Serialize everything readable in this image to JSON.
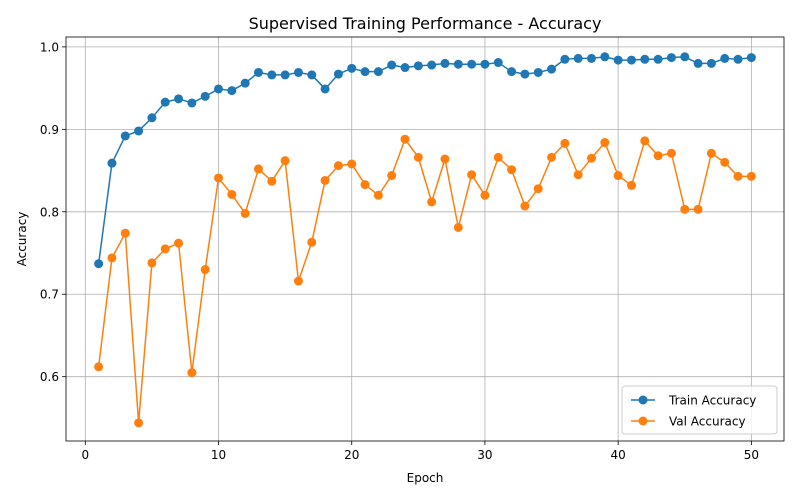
{
  "chart_data": {
    "type": "line",
    "title": "Supervised Training Performance - Accuracy",
    "xlabel": "Epoch",
    "ylabel": "Accuracy",
    "xlim": [
      -1.45,
      52.45
    ],
    "ylim": [
      0.522,
      1.012
    ],
    "xticks": [
      0,
      10,
      20,
      30,
      40,
      50
    ],
    "yticks": [
      0.6,
      0.7,
      0.8,
      0.9,
      1.0
    ],
    "xtick_labels": [
      "0",
      "10",
      "20",
      "30",
      "40",
      "50"
    ],
    "ytick_labels": [
      "0.6",
      "0.7",
      "0.8",
      "0.9",
      "1.0"
    ],
    "grid": true,
    "legend_position": "lower right",
    "x": [
      1,
      2,
      3,
      4,
      5,
      6,
      7,
      8,
      9,
      10,
      11,
      12,
      13,
      14,
      15,
      16,
      17,
      18,
      19,
      20,
      21,
      22,
      23,
      24,
      25,
      26,
      27,
      28,
      29,
      30,
      31,
      32,
      33,
      34,
      35,
      36,
      37,
      38,
      39,
      40,
      41,
      42,
      43,
      44,
      45,
      46,
      47,
      48,
      49,
      50
    ],
    "series": [
      {
        "name": "Train Accuracy",
        "color": "#1f77b4",
        "values": [
          0.737,
          0.859,
          0.892,
          0.898,
          0.914,
          0.933,
          0.937,
          0.932,
          0.94,
          0.949,
          0.947,
          0.956,
          0.969,
          0.966,
          0.966,
          0.969,
          0.966,
          0.949,
          0.967,
          0.974,
          0.97,
          0.97,
          0.978,
          0.975,
          0.977,
          0.978,
          0.98,
          0.979,
          0.979,
          0.979,
          0.981,
          0.97,
          0.967,
          0.969,
          0.973,
          0.985,
          0.986,
          0.986,
          0.988,
          0.984,
          0.984,
          0.985,
          0.985,
          0.987,
          0.988,
          0.98,
          0.98,
          0.986,
          0.985,
          0.987
        ]
      },
      {
        "name": "Val Accuracy",
        "color": "#ff7f0e",
        "values": [
          0.612,
          0.744,
          0.774,
          0.544,
          0.738,
          0.755,
          0.762,
          0.605,
          0.73,
          0.841,
          0.821,
          0.798,
          0.852,
          0.837,
          0.862,
          0.716,
          0.763,
          0.838,
          0.856,
          0.858,
          0.833,
          0.82,
          0.844,
          0.888,
          0.866,
          0.812,
          0.864,
          0.781,
          0.845,
          0.82,
          0.866,
          0.851,
          0.807,
          0.828,
          0.866,
          0.883,
          0.845,
          0.865,
          0.884,
          0.844,
          0.832,
          0.886,
          0.868,
          0.871,
          0.803,
          0.803,
          0.871,
          0.86,
          0.843,
          0.843
        ]
      }
    ]
  }
}
